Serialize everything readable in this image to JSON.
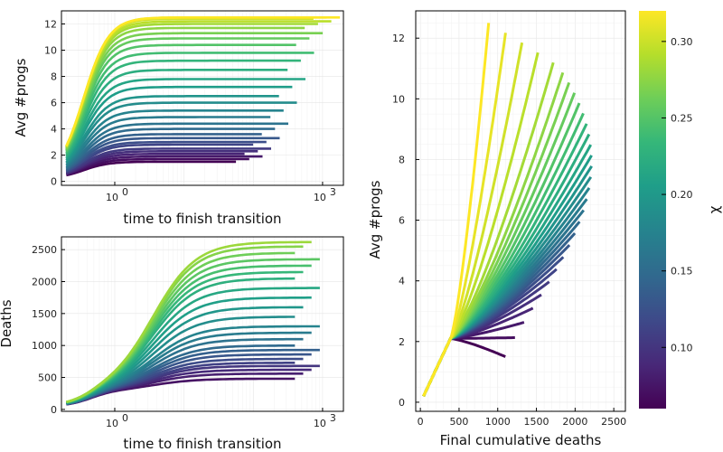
{
  "chart_data": [
    {
      "id": "top-left",
      "type": "line",
      "xlabel": "time to finish transition",
      "ylabel": "Avg #progs",
      "xscale": "log",
      "xlim": [
        0.17,
        2000
      ],
      "ylim": [
        -0.3,
        13
      ],
      "xticks": [
        1,
        1000
      ],
      "xtick_labels": [
        "10^0",
        "10^3"
      ],
      "yticks": [
        0,
        2,
        4,
        6,
        8,
        10,
        12
      ],
      "grid": true,
      "series_count": 40,
      "x_start": 0.2,
      "y_start": 0.2,
      "final_values": [
        1.5,
        1.7,
        1.9,
        2.1,
        2.3,
        2.5,
        2.8,
        3.0,
        3.3,
        3.6,
        4.0,
        4.4,
        4.9,
        5.4,
        6.0,
        6.5,
        7.2,
        7.8,
        8.5,
        9.2,
        9.8,
        10.4,
        10.9,
        11.3,
        11.7,
        12.0,
        12.2,
        12.4,
        12.5,
        12.5
      ]
    },
    {
      "id": "bottom-left",
      "type": "line",
      "xlabel": "time to finish transition",
      "ylabel": "Deaths",
      "xscale": "log",
      "xlim": [
        0.17,
        2000
      ],
      "ylim": [
        -30,
        2700
      ],
      "xticks": [
        1,
        1000
      ],
      "xtick_labels": [
        "10^0",
        "10^3"
      ],
      "yticks": [
        0,
        500,
        1000,
        1500,
        2000,
        2500
      ],
      "grid": true,
      "final_values": [
        480,
        560,
        620,
        680,
        730,
        790,
        860,
        930,
        1000,
        1100,
        1200,
        1300,
        1450,
        1600,
        1750,
        1900,
        2050,
        2150,
        2250,
        2350,
        2450,
        2550,
        2620
      ]
    },
    {
      "id": "right",
      "type": "line",
      "xlabel": "Final cumulative deaths",
      "ylabel": "Avg #progs",
      "xlim": [
        -60,
        2650
      ],
      "ylim": [
        -0.3,
        12.9
      ],
      "xticks": [
        0,
        500,
        1000,
        1500,
        2000,
        2500
      ],
      "yticks": [
        0,
        2,
        4,
        6,
        8,
        10,
        12
      ],
      "grid": true,
      "colorbar": {
        "label": "χ",
        "range": [
          0.06,
          0.32
        ],
        "ticks": [
          0.1,
          0.15,
          0.2,
          0.25,
          0.3
        ],
        "tick_labels": [
          "0.10",
          "0.15",
          "0.20",
          "0.25",
          "0.30"
        ],
        "colormap": "viridis",
        "colors": [
          "#440154",
          "#482878",
          "#3e4989",
          "#31688e",
          "#26828e",
          "#1f9e89",
          "#35b779",
          "#6ece58",
          "#b5de2b",
          "#fde725"
        ]
      }
    }
  ]
}
